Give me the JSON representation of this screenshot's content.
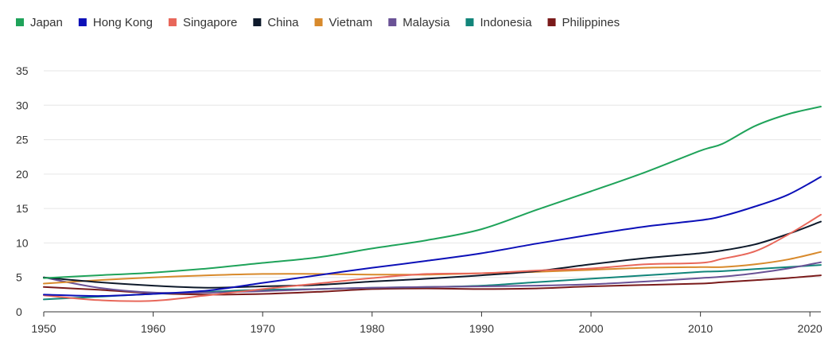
{
  "chart_data": {
    "type": "line",
    "title": "",
    "xlabel": "",
    "ylabel": "",
    "xlim": [
      1950,
      2021
    ],
    "ylim": [
      0,
      35
    ],
    "x_ticks": [
      1950,
      1960,
      1970,
      1980,
      1990,
      2000,
      2010,
      2020
    ],
    "y_ticks": [
      0,
      5,
      10,
      15,
      20,
      25,
      30,
      35
    ],
    "grid": "horizontal",
    "legend_position": "top-left",
    "x": [
      1950,
      1955,
      1960,
      1965,
      1970,
      1975,
      1980,
      1985,
      1990,
      1995,
      2000,
      2005,
      2010,
      2012,
      2015,
      2018,
      2021
    ],
    "series": [
      {
        "name": "Japan",
        "color": "#1fa35a",
        "values": [
          4.9,
          5.3,
          5.7,
          6.3,
          7.1,
          7.9,
          9.2,
          10.4,
          12.0,
          14.8,
          17.5,
          20.3,
          23.4,
          24.4,
          27.0,
          28.7,
          29.8
        ]
      },
      {
        "name": "Hong Kong",
        "color": "#0c10b8",
        "values": [
          2.5,
          2.3,
          2.6,
          3.1,
          4.2,
          5.3,
          6.4,
          7.4,
          8.5,
          9.9,
          11.2,
          12.4,
          13.3,
          13.9,
          15.3,
          17.0,
          19.6
        ]
      },
      {
        "name": "Singapore",
        "color": "#e8675a",
        "values": [
          2.4,
          1.7,
          1.6,
          2.4,
          3.3,
          4.1,
          4.9,
          5.5,
          5.6,
          6.0,
          6.3,
          6.9,
          7.1,
          7.7,
          8.8,
          11.2,
          14.1
        ]
      },
      {
        "name": "China",
        "color": "#0e1a2b",
        "values": [
          5.0,
          4.3,
          3.8,
          3.5,
          3.7,
          3.9,
          4.4,
          4.8,
          5.3,
          5.9,
          6.9,
          7.8,
          8.5,
          8.9,
          9.8,
          11.3,
          13.1
        ]
      },
      {
        "name": "Vietnam",
        "color": "#d88a2c",
        "values": [
          4.1,
          4.6,
          5.0,
          5.3,
          5.5,
          5.5,
          5.4,
          5.4,
          5.6,
          5.8,
          6.1,
          6.4,
          6.5,
          6.5,
          6.9,
          7.6,
          8.7
        ]
      },
      {
        "name": "Malaysia",
        "color": "#6a5296",
        "values": [
          5.0,
          3.5,
          2.8,
          2.8,
          3.0,
          3.3,
          3.5,
          3.6,
          3.7,
          3.8,
          4.0,
          4.4,
          4.9,
          5.1,
          5.6,
          6.3,
          7.2
        ]
      },
      {
        "name": "Indonesia",
        "color": "#12857a",
        "values": [
          1.8,
          2.2,
          2.6,
          2.9,
          3.2,
          3.3,
          3.5,
          3.6,
          3.8,
          4.3,
          4.8,
          5.3,
          5.8,
          5.9,
          6.2,
          6.5,
          6.8
        ]
      },
      {
        "name": "Philippines",
        "color": "#7a1b1b",
        "values": [
          3.6,
          3.2,
          2.7,
          2.5,
          2.6,
          2.9,
          3.3,
          3.4,
          3.3,
          3.4,
          3.7,
          3.9,
          4.1,
          4.3,
          4.6,
          4.9,
          5.3
        ]
      }
    ]
  }
}
